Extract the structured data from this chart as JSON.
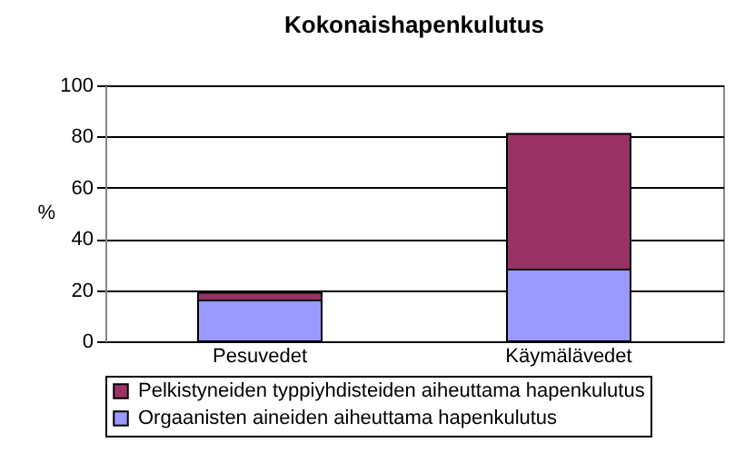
{
  "chart_data": {
    "type": "bar",
    "title": "Kokonaishapenkulutus",
    "ylabel": "%",
    "categories": [
      "Pesuvedet",
      "Käymälävedet"
    ],
    "stacked": true,
    "ylim": [
      0,
      100
    ],
    "yticks": [
      0,
      20,
      40,
      60,
      80,
      100
    ],
    "grid": "y",
    "legend": "bottom",
    "series": [
      {
        "name": "Orgaanisten aineiden aiheuttama hapenkulutus",
        "color": "#9999ff",
        "values": [
          16,
          28
        ]
      },
      {
        "name": "Pelkistyneiden typpiyhdisteiden aiheuttama hapenkulutus",
        "color": "#993366",
        "values": [
          3,
          53
        ]
      }
    ]
  }
}
